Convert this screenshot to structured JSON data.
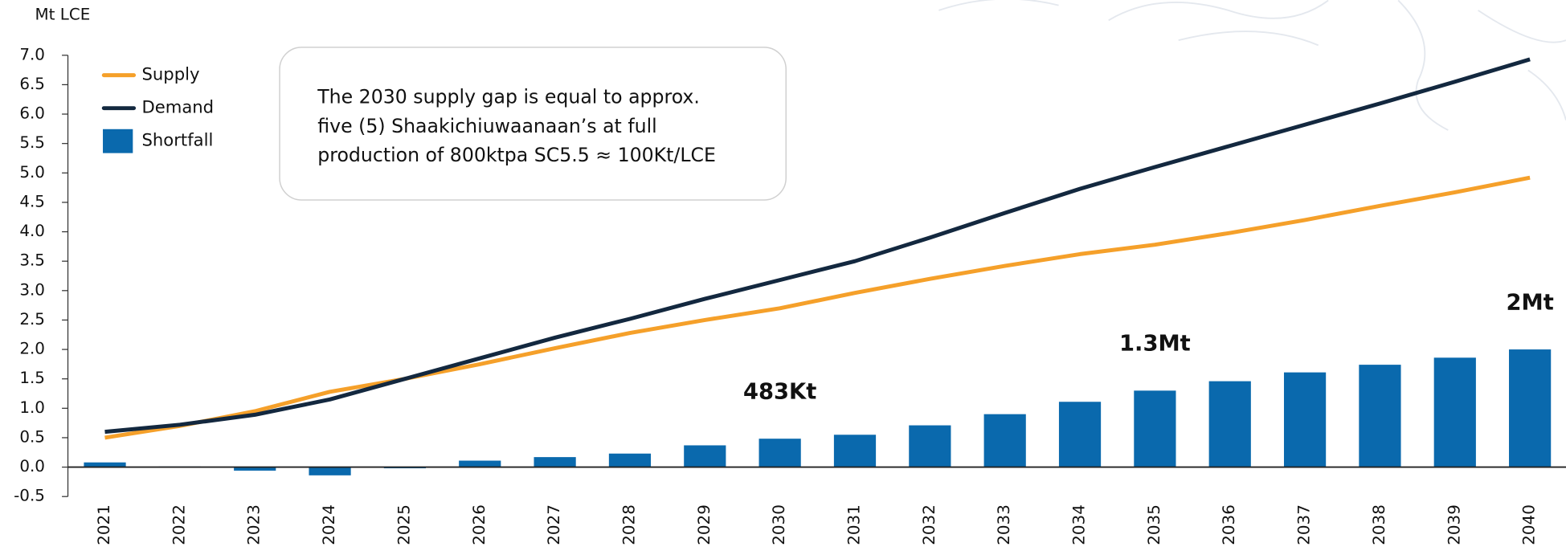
{
  "chart_data": {
    "type": "bar",
    "y_axis_label": "Mt LCE",
    "annotation": [
      "The 2030 supply gap is equal to approx.",
      "five (5) Shaakichiuwaanaan’s at full",
      "production of 800ktpa SC5.5 ≈ 100Kt/LCE"
    ],
    "categories": [
      "2021",
      "2022",
      "2023",
      "2024",
      "2025",
      "2026",
      "2027",
      "2028",
      "2029",
      "2030",
      "2031",
      "2032",
      "2033",
      "2034",
      "2035",
      "2036",
      "2037",
      "2038",
      "2039",
      "2040"
    ],
    "series": [
      {
        "name": "Supply",
        "type": "line",
        "color": "#f5a02a",
        "values": [
          0.5,
          0.7,
          0.95,
          1.28,
          1.5,
          1.75,
          2.02,
          2.28,
          2.5,
          2.7,
          2.96,
          3.2,
          3.42,
          3.62,
          3.78,
          3.98,
          4.2,
          4.44,
          4.67,
          4.92
        ]
      },
      {
        "name": "Demand",
        "type": "line",
        "color": "#13283f",
        "values": [
          0.6,
          0.72,
          0.89,
          1.15,
          1.5,
          1.85,
          2.2,
          2.52,
          2.86,
          3.18,
          3.5,
          3.9,
          4.32,
          4.73,
          5.1,
          5.46,
          5.82,
          6.18,
          6.55,
          6.93
        ]
      },
      {
        "name": "Shortfall",
        "type": "bar",
        "color": "#0a69ad",
        "values": [
          0.08,
          0.01,
          -0.06,
          -0.14,
          -0.02,
          0.11,
          0.17,
          0.23,
          0.37,
          0.483,
          0.55,
          0.71,
          0.9,
          1.11,
          1.3,
          1.46,
          1.61,
          1.74,
          1.86,
          2.0
        ],
        "value_labels": [
          null,
          null,
          null,
          null,
          null,
          null,
          null,
          null,
          null,
          "483Kt",
          null,
          null,
          null,
          null,
          "1.3Mt",
          null,
          null,
          null,
          null,
          "2Mt"
        ]
      }
    ],
    "ylim": [
      -0.5,
      7.0
    ],
    "yticks": [
      -0.5,
      {
        "value": 0,
        "label": "0.0"
      },
      0.5,
      {
        "value": 1,
        "label": "1.0"
      },
      1.5,
      {
        "value": 2,
        "label": "2.0"
      },
      2.5,
      {
        "value": 3,
        "label": "3.0"
      },
      3.5,
      {
        "value": 4,
        "label": "4.0"
      },
      4.5,
      {
        "value": 5,
        "label": "5.0"
      },
      5.5,
      {
        "value": 6,
        "label": "6.0"
      },
      6.5,
      {
        "value": 7,
        "label": "7.0"
      }
    ],
    "legend": "top-left"
  }
}
